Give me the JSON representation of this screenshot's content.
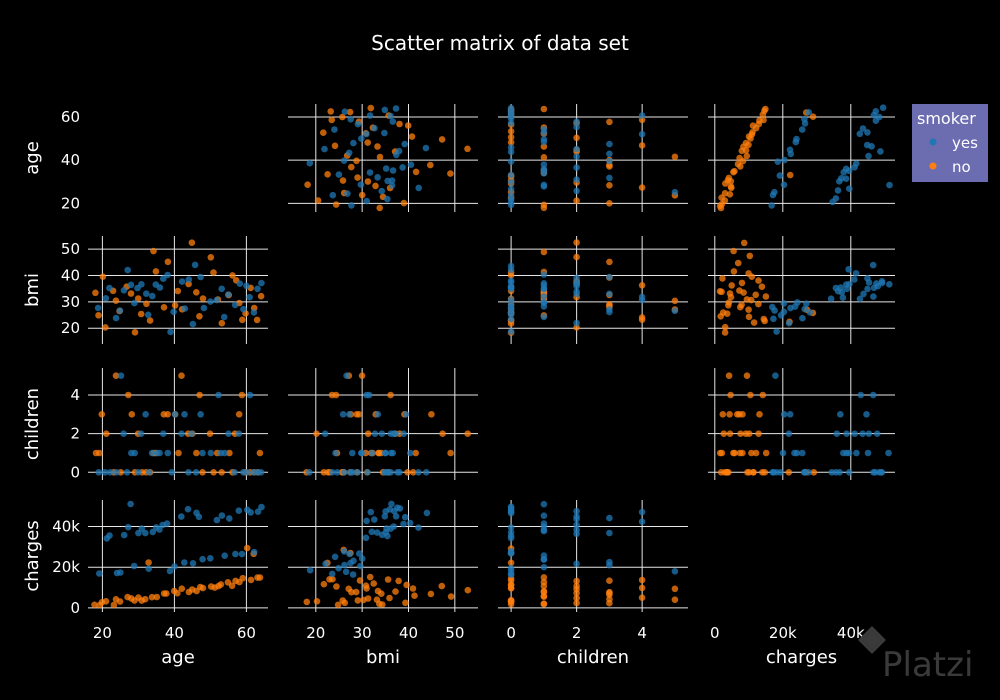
{
  "chart_data": {
    "type": "scatter",
    "title": "Scatter matrix of data set",
    "dimensions": [
      "age",
      "bmi",
      "children",
      "charges"
    ],
    "axes": {
      "age": {
        "range": [
          16,
          66
        ],
        "ticks": [
          20,
          40,
          60
        ],
        "tick_labels": [
          "20",
          "40",
          "60"
        ]
      },
      "bmi": {
        "range": [
          14,
          55
        ],
        "ticks": [
          20,
          30,
          40,
          50
        ],
        "tick_labels": [
          "20",
          "30",
          "40",
          "50"
        ]
      },
      "children": {
        "range": [
          -0.4,
          5.4
        ],
        "ticks": [
          0,
          2,
          4
        ],
        "tick_labels": [
          "0",
          "2",
          "4"
        ]
      },
      "charges": {
        "range": [
          -2000,
          53000
        ],
        "ticks": [
          0,
          20000,
          40000
        ],
        "tick_labels": [
          "0",
          "20k",
          "40k"
        ]
      }
    },
    "legend": {
      "title": "smoker",
      "position": "top-right",
      "entries": [
        {
          "name": "yes",
          "color": "#1f77b4"
        },
        {
          "name": "no",
          "color": "#ff7f0e"
        }
      ]
    },
    "series": [
      {
        "name": "yes",
        "color": "#1f77b4",
        "columns": [
          "age",
          "bmi",
          "children",
          "charges"
        ],
        "points": [
          [
            19,
            27.9,
            0,
            16885
          ],
          [
            62,
            26.3,
            0,
            27809
          ],
          [
            27,
            42.1,
            0,
            39612
          ],
          [
            30,
            35.3,
            0,
            36837
          ],
          [
            34,
            31.9,
            1,
            37701
          ],
          [
            31,
            36.3,
            2,
            38711
          ],
          [
            22,
            35.6,
            0,
            35586
          ],
          [
            28,
            36.4,
            1,
            51195
          ],
          [
            35,
            36.7,
            1,
            39774
          ],
          [
            60,
            36.0,
            0,
            48174
          ],
          [
            36,
            35.2,
            1,
            38709
          ],
          [
            48,
            28.0,
            1,
            23568
          ],
          [
            42,
            37.4,
            2,
            45270
          ],
          [
            63,
            35.1,
            0,
            47055
          ],
          [
            44,
            38.1,
            0,
            48886
          ],
          [
            55,
            32.8,
            2,
            43600
          ],
          [
            26,
            34.2,
            2,
            36000
          ],
          [
            50,
            30.0,
            1,
            24200
          ],
          [
            59,
            27.5,
            0,
            26400
          ],
          [
            24,
            23.7,
            0,
            17100
          ],
          [
            40,
            26.0,
            3,
            20600
          ],
          [
            29,
            29.6,
            1,
            20300
          ],
          [
            33,
            24.8,
            0,
            19400
          ],
          [
            45,
            21.9,
            2,
            21900
          ],
          [
            57,
            29.2,
            0,
            26700
          ],
          [
            21,
            31.0,
            0,
            34400
          ],
          [
            38,
            40.5,
            1,
            41800
          ],
          [
            47,
            39.3,
            3,
            44600
          ],
          [
            53,
            34.9,
            1,
            44900
          ],
          [
            61,
            31.7,
            4,
            46700
          ],
          [
            64,
            37.5,
            0,
            49400
          ],
          [
            25,
            26.7,
            5,
            17800
          ],
          [
            32,
            33.3,
            3,
            37200
          ],
          [
            46,
            43.9,
            0,
            46400
          ],
          [
            39,
            18.8,
            0,
            18300
          ],
          [
            58,
            36.8,
            2,
            47600
          ],
          [
            52,
            30.8,
            4,
            42800
          ],
          [
            43,
            27.4,
            3,
            22400
          ],
          [
            37,
            38.8,
            2,
            40900
          ],
          [
            54,
            24.1,
            1,
            25600
          ]
        ]
      },
      {
        "name": "no",
        "color": "#ff7f0e",
        "columns": [
          "age",
          "bmi",
          "children",
          "charges"
        ],
        "points": [
          [
            18,
            33.8,
            1,
            1726
          ],
          [
            28,
            33.0,
            3,
            4449
          ],
          [
            33,
            22.7,
            0,
            21984
          ],
          [
            32,
            28.9,
            0,
            3867
          ],
          [
            31,
            25.7,
            0,
            3757
          ],
          [
            46,
            33.4,
            1,
            8241
          ],
          [
            37,
            27.7,
            3,
            7282
          ],
          [
            60,
            25.8,
            0,
            28923
          ],
          [
            25,
            26.2,
            0,
            2721
          ],
          [
            23,
            34.4,
            0,
            1827
          ],
          [
            56,
            39.8,
            0,
            11090
          ],
          [
            52,
            30.8,
            1,
            10797
          ],
          [
            19,
            24.6,
            1,
            1837
          ],
          [
            63,
            23.1,
            0,
            14451
          ],
          [
            55,
            32.4,
            1,
            12268
          ],
          [
            40,
            28.7,
            3,
            8060
          ],
          [
            44,
            37.1,
            2,
            7740
          ],
          [
            48,
            31.0,
            0,
            9400
          ],
          [
            21,
            20.3,
            2,
            2800
          ],
          [
            27,
            36.1,
            4,
            4900
          ],
          [
            35,
            41.5,
            1,
            5800
          ],
          [
            42,
            26.9,
            5,
            9700
          ],
          [
            50,
            47.2,
            2,
            10400
          ],
          [
            58,
            29.4,
            3,
            13000
          ],
          [
            61,
            35.6,
            0,
            13900
          ],
          [
            64,
            31.8,
            1,
            15100
          ],
          [
            29,
            18.2,
            0,
            3300
          ],
          [
            38,
            44.9,
            3,
            6700
          ],
          [
            45,
            52.6,
            2,
            8900
          ],
          [
            53,
            21.8,
            0,
            11300
          ],
          [
            24,
            30.1,
            5,
            4200
          ],
          [
            34,
            49.1,
            1,
            5400
          ],
          [
            47,
            24.3,
            4,
            10200
          ],
          [
            57,
            37.9,
            2,
            12800
          ],
          [
            62,
            27.3,
            0,
            27000
          ],
          [
            20,
            39.2,
            3,
            2300
          ],
          [
            30,
            31.4,
            2,
            4700
          ],
          [
            41,
            34.0,
            1,
            7300
          ],
          [
            51,
            40.9,
            0,
            9900
          ],
          [
            59,
            23.5,
            4,
            14200
          ]
        ]
      }
    ]
  },
  "watermark": "Platzi"
}
